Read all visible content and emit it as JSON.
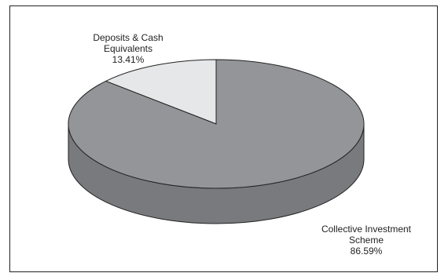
{
  "chart_data": {
    "type": "pie",
    "style": "3d",
    "slices": [
      {
        "name": "Deposits & Cash",
        "name_line2": "Equivalents",
        "value": 13.41,
        "label": "13.41%",
        "color": "#e6e7e8"
      },
      {
        "name": "Collective Investment",
        "name_line2": "Scheme",
        "value": 86.59,
        "label": "86.59%",
        "color": "#939598"
      }
    ],
    "legend": "none"
  }
}
